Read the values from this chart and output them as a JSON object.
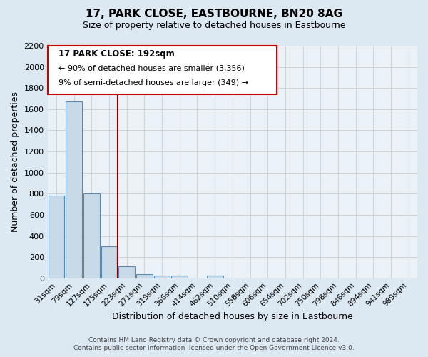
{
  "title": "17, PARK CLOSE, EASTBOURNE, BN20 8AG",
  "subtitle": "Size of property relative to detached houses in Eastbourne",
  "xlabel": "Distribution of detached houses by size in Eastbourne",
  "ylabel": "Number of detached properties",
  "footer_line1": "Contains HM Land Registry data © Crown copyright and database right 2024.",
  "footer_line2": "Contains public sector information licensed under the Open Government Licence v3.0.",
  "bar_labels": [
    "31sqm",
    "79sqm",
    "127sqm",
    "175sqm",
    "223sqm",
    "271sqm",
    "319sqm",
    "366sqm",
    "414sqm",
    "462sqm",
    "510sqm",
    "558sqm",
    "606sqm",
    "654sqm",
    "702sqm",
    "750sqm",
    "798sqm",
    "846sqm",
    "894sqm",
    "941sqm",
    "989sqm"
  ],
  "bar_values": [
    780,
    1670,
    800,
    300,
    110,
    38,
    28,
    28,
    0,
    28,
    0,
    0,
    0,
    0,
    0,
    0,
    0,
    0,
    0,
    0,
    0
  ],
  "bar_color": "#c8d9e8",
  "bar_edge_color": "#5a8ab0",
  "annotation_title": "17 PARK CLOSE: 192sqm",
  "annotation_line1": "← 90% of detached houses are smaller (3,356)",
  "annotation_line2": "9% of semi-detached houses are larger (349) →",
  "annotation_box_color": "#ffffff",
  "annotation_box_edge": "#cc0000",
  "ref_line_color": "#880000",
  "ref_line_x": 3.5,
  "ylim": [
    0,
    2200
  ],
  "yticks": [
    0,
    200,
    400,
    600,
    800,
    1000,
    1200,
    1400,
    1600,
    1800,
    2000,
    2200
  ],
  "grid_color": "#cccccc",
  "background_color": "#dce8f2",
  "plot_bg_color": "#eaf2f8",
  "title_fontsize": 11,
  "subtitle_fontsize": 9
}
